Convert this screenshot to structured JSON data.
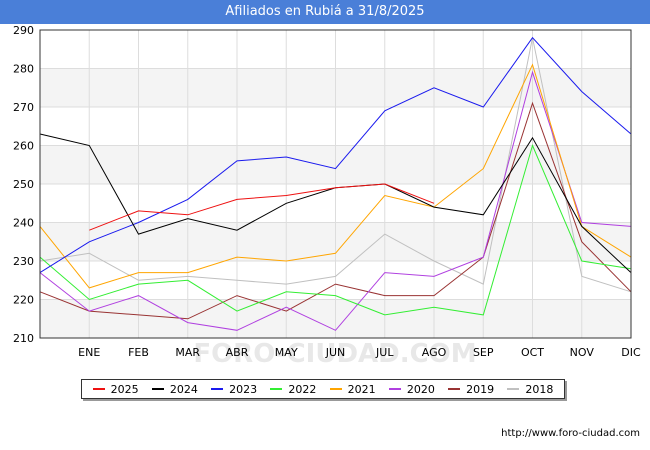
{
  "header": {
    "title": "Afiliados en Rubiá a 31/8/2025"
  },
  "credit": "http://www.foro-ciudad.com",
  "watermark": "FORO-CIUDAD.COM",
  "chart_data": {
    "type": "line",
    "title": "Afiliados en Rubiá a 31/8/2025",
    "categories": [
      "",
      "ENE",
      "FEB",
      "MAR",
      "ABR",
      "MAY",
      "JUN",
      "JUL",
      "AGO",
      "SEP",
      "OCT",
      "NOV",
      "DIC"
    ],
    "ylim": [
      210,
      290
    ],
    "yticks": [
      210,
      220,
      230,
      240,
      250,
      260,
      270,
      280,
      290
    ],
    "series": [
      {
        "name": "2018",
        "color": "#c0c0c0",
        "values": [
          230,
          232,
          225,
          226,
          225,
          224,
          226,
          237,
          230,
          224,
          288,
          226,
          222
        ]
      },
      {
        "name": "2019",
        "color": "#993333",
        "values": [
          222,
          217,
          216,
          215,
          221,
          217,
          224,
          221,
          221,
          231,
          271,
          235,
          222
        ]
      },
      {
        "name": "2020",
        "color": "#b040e0",
        "values": [
          227,
          217,
          221,
          214,
          212,
          218,
          212,
          227,
          226,
          231,
          279,
          240,
          239
        ]
      },
      {
        "name": "2021",
        "color": "#ffa500",
        "values": [
          239,
          223,
          227,
          227,
          231,
          230,
          232,
          247,
          244,
          254,
          281,
          239,
          231
        ]
      },
      {
        "name": "2022",
        "color": "#33ee33",
        "values": [
          231,
          220,
          224,
          225,
          217,
          222,
          221,
          216,
          218,
          216,
          260,
          230,
          228
        ]
      },
      {
        "name": "2023",
        "color": "#1a1aee",
        "values": [
          227,
          235,
          240,
          246,
          256,
          257,
          254,
          269,
          275,
          270,
          288,
          274,
          263
        ]
      },
      {
        "name": "2024",
        "color": "#000000",
        "values": [
          263,
          260,
          237,
          241,
          238,
          245,
          249,
          250,
          244,
          242,
          262,
          239,
          227
        ]
      },
      {
        "name": "2025",
        "color": "#ee1111",
        "values": [
          null,
          238,
          243,
          242,
          246,
          247,
          249,
          250,
          245,
          null,
          null,
          null,
          null
        ]
      }
    ],
    "legend": [
      "2025",
      "2024",
      "2023",
      "2022",
      "2021",
      "2020",
      "2019",
      "2018"
    ]
  }
}
